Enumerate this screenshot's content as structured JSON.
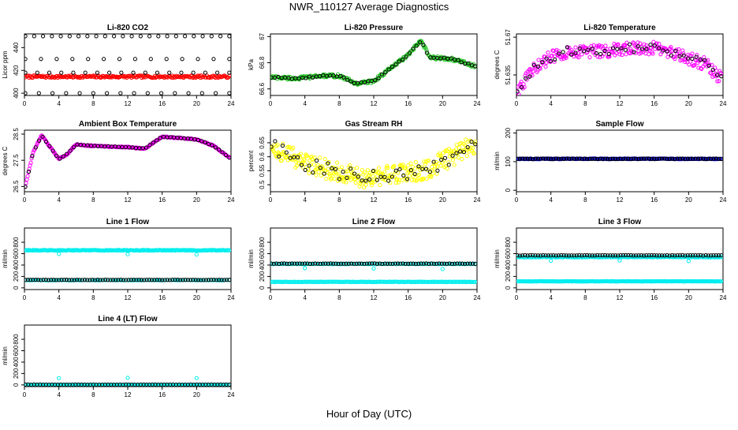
{
  "suptitle": "NWR_110127  Average Diagnostics",
  "common_xlabel": "Hour of Day (UTC)",
  "chart_data": [
    {
      "type": "scatter",
      "title": "Li-820 CO2",
      "ylabel": "Licor ppm",
      "xlim": [
        0,
        24
      ],
      "xticks": [
        0,
        4,
        8,
        12,
        16,
        20,
        24
      ],
      "ylim": [
        398,
        452
      ],
      "yticks": [
        400,
        420,
        440
      ],
      "series": [
        {
          "name": "minute",
          "color": "#ff0000",
          "model": "flat",
          "base": 414.5,
          "amp": 1.0,
          "n": 220
        },
        {
          "name": "top",
          "color": "#000000",
          "model": "flat",
          "base": 450,
          "amp": 0,
          "n": 24
        },
        {
          "name": "upper",
          "color": "#000000",
          "model": "flat",
          "base": 430,
          "amp": 0,
          "n": 14
        },
        {
          "name": "mid",
          "color": "#000000",
          "model": "flat",
          "base": 418,
          "amp": 0,
          "n": 18
        },
        {
          "name": "low",
          "color": "#000000",
          "model": "flat",
          "base": 400,
          "amp": 0,
          "n": 16
        }
      ]
    },
    {
      "type": "scatter",
      "title": "Li-820 Pressure",
      "ylabel": "kPa",
      "xlim": [
        0,
        24
      ],
      "xticks": [
        0,
        4,
        8,
        12,
        16,
        20,
        24
      ],
      "ylim": [
        66.55,
        67.02
      ],
      "yticks": [
        66.6,
        66.8,
        67.0
      ],
      "series": [
        {
          "name": "minute",
          "color": "#22c222",
          "model": "curve",
          "curve": [
            [
              0,
              66.69
            ],
            [
              3,
              66.68
            ],
            [
              6,
              66.7
            ],
            [
              8,
              66.7
            ],
            [
              10,
              66.64
            ],
            [
              12,
              66.66
            ],
            [
              14,
              66.76
            ],
            [
              16,
              66.86
            ],
            [
              17.5,
              66.97
            ],
            [
              18.5,
              66.84
            ],
            [
              21,
              66.83
            ],
            [
              22.5,
              66.8
            ],
            [
              24,
              66.77
            ]
          ],
          "amp": 0.012,
          "n": 240
        },
        {
          "name": "hourly",
          "color": "#000000",
          "model": "curve",
          "curve": [
            [
              0,
              66.69
            ],
            [
              3,
              66.68
            ],
            [
              6,
              66.7
            ],
            [
              8,
              66.7
            ],
            [
              10,
              66.64
            ],
            [
              12,
              66.66
            ],
            [
              14,
              66.76
            ],
            [
              16,
              66.86
            ],
            [
              17.5,
              66.97
            ],
            [
              18.5,
              66.84
            ],
            [
              21,
              66.83
            ],
            [
              22.5,
              66.8
            ],
            [
              24,
              66.77
            ]
          ],
          "amp": 0.006,
          "n": 60
        }
      ]
    },
    {
      "type": "scatter",
      "title": "Li-820 Temperature",
      "ylabel": "degrees C",
      "xlim": [
        0,
        24
      ],
      "xticks": [
        0,
        4,
        8,
        12,
        16,
        20,
        24
      ],
      "ylim": [
        51.616,
        51.673
      ],
      "yticks": [
        51.635,
        51.67
      ],
      "series": [
        {
          "name": "minute",
          "color": "#ff00ff",
          "model": "curve",
          "curve": [
            [
              0,
              51.62
            ],
            [
              2,
              51.64
            ],
            [
              4,
              51.652
            ],
            [
              6,
              51.657
            ],
            [
              10,
              51.657
            ],
            [
              14,
              51.66
            ],
            [
              16,
              51.66
            ],
            [
              18,
              51.655
            ],
            [
              20,
              51.65
            ],
            [
              22,
              51.645
            ],
            [
              24,
              51.63
            ]
          ],
          "amp": 0.006,
          "n": 260
        },
        {
          "name": "hourly",
          "color": "#000000",
          "model": "curve",
          "curve": [
            [
              0,
              51.62
            ],
            [
              2,
              51.64
            ],
            [
              4,
              51.652
            ],
            [
              6,
              51.657
            ],
            [
              10,
              51.657
            ],
            [
              14,
              51.66
            ],
            [
              16,
              51.66
            ],
            [
              18,
              51.655
            ],
            [
              20,
              51.65
            ],
            [
              22,
              51.645
            ],
            [
              24,
              51.63
            ]
          ],
          "amp": 0.004,
          "n": 50
        }
      ]
    },
    {
      "type": "scatter",
      "title": "Ambient Box Temperature",
      "ylabel": "degrees C",
      "xlim": [
        0,
        24
      ],
      "xticks": [
        0,
        4,
        8,
        12,
        16,
        20,
        24
      ],
      "ylim": [
        26.3,
        28.65
      ],
      "yticks": [
        26.5,
        27.5,
        28.5
      ],
      "series": [
        {
          "name": "minute",
          "color": "#ff00ff",
          "model": "curve",
          "curve": [
            [
              0,
              26.35
            ],
            [
              1,
              27.8
            ],
            [
              2,
              28.45
            ],
            [
              3,
              28.0
            ],
            [
              4,
              27.55
            ],
            [
              5,
              27.75
            ],
            [
              6,
              28.1
            ],
            [
              8,
              28.05
            ],
            [
              12,
              28.0
            ],
            [
              14,
              27.95
            ],
            [
              16,
              28.4
            ],
            [
              18,
              28.35
            ],
            [
              20,
              28.3
            ],
            [
              22,
              28.05
            ],
            [
              24,
              27.55
            ]
          ],
          "amp": 0.02,
          "n": 260
        },
        {
          "name": "hourly",
          "color": "#000000",
          "model": "curve",
          "curve": [
            [
              0,
              26.35
            ],
            [
              1,
              27.8
            ],
            [
              2,
              28.45
            ],
            [
              3,
              28.0
            ],
            [
              4,
              27.55
            ],
            [
              5,
              27.75
            ],
            [
              6,
              28.1
            ],
            [
              8,
              28.05
            ],
            [
              12,
              28.0
            ],
            [
              14,
              27.95
            ],
            [
              16,
              28.4
            ],
            [
              18,
              28.35
            ],
            [
              20,
              28.3
            ],
            [
              22,
              28.05
            ],
            [
              24,
              27.55
            ]
          ],
          "amp": 0.01,
          "n": 60
        }
      ]
    },
    {
      "type": "scatter",
      "title": "Gas Stream RH",
      "ylabel": "percent",
      "xlim": [
        0,
        24
      ],
      "xticks": [
        0,
        4,
        8,
        12,
        16,
        20,
        24
      ],
      "ylim": [
        0.475,
        0.695
      ],
      "yticks": [
        0.5,
        0.55,
        0.6,
        0.65
      ],
      "series": [
        {
          "name": "minute",
          "color": "#ffff00",
          "model": "curve",
          "curve": [
            [
              0,
              0.64
            ],
            [
              4,
              0.575
            ],
            [
              8,
              0.545
            ],
            [
              11,
              0.52
            ],
            [
              14,
              0.54
            ],
            [
              18,
              0.55
            ],
            [
              21,
              0.6
            ],
            [
              24,
              0.65
            ]
          ],
          "amp": 0.035,
          "n": 320
        },
        {
          "name": "hourly",
          "color": "#000000",
          "model": "curve",
          "curve": [
            [
              0,
              0.64
            ],
            [
              4,
              0.575
            ],
            [
              8,
              0.545
            ],
            [
              11,
              0.52
            ],
            [
              14,
              0.54
            ],
            [
              18,
              0.55
            ],
            [
              21,
              0.6
            ],
            [
              24,
              0.65
            ]
          ],
          "amp": 0.025,
          "n": 55
        }
      ]
    },
    {
      "type": "scatter",
      "title": "Sample Flow",
      "ylabel": "ml/min",
      "xlim": [
        0,
        24
      ],
      "xticks": [
        0,
        4,
        8,
        12,
        16,
        20,
        24
      ],
      "ylim": [
        -5,
        210
      ],
      "yticks": [
        0,
        100,
        200
      ],
      "series": [
        {
          "name": "minute",
          "color": "#0000cc",
          "model": "flat",
          "base": 110,
          "amp": 1.2,
          "n": 200
        },
        {
          "name": "hourly",
          "color": "#000000",
          "model": "flat",
          "base": 110,
          "amp": 1.0,
          "n": 80
        }
      ]
    },
    {
      "type": "scatter",
      "title": "Line 1 Flow",
      "ylabel": "ml/min",
      "xlim": [
        0,
        24
      ],
      "xticks": [
        0,
        4,
        8,
        12,
        16,
        20,
        24
      ],
      "ylim": [
        -30,
        1050
      ],
      "yticks": [
        0,
        200,
        400,
        600,
        800
      ],
      "series": [
        {
          "name": "minute",
          "color": "#00eeee",
          "model": "flat",
          "base": 660,
          "amp": 6,
          "n": 220
        },
        {
          "name": "dips",
          "color": "#00eeee",
          "model": "points",
          "points": [
            [
              4,
              595
            ],
            [
              12,
              590
            ],
            [
              20,
              585
            ]
          ]
        },
        {
          "name": "minute-low",
          "color": "#00eeee",
          "model": "flat",
          "base": 135,
          "amp": 3,
          "n": 90
        },
        {
          "name": "hourly",
          "color": "#000000",
          "model": "flat",
          "base": 140,
          "amp": 3,
          "n": 80
        }
      ]
    },
    {
      "type": "scatter",
      "title": "Line 2 Flow",
      "ylabel": "ml/min",
      "xlim": [
        0,
        24
      ],
      "xticks": [
        0,
        4,
        8,
        12,
        16,
        20,
        24
      ],
      "ylim": [
        -30,
        1050
      ],
      "yticks": [
        0,
        200,
        400,
        600,
        800
      ],
      "series": [
        {
          "name": "minute",
          "color": "#00eeee",
          "model": "flat",
          "base": 420,
          "amp": 4,
          "n": 120
        },
        {
          "name": "dips",
          "color": "#00eeee",
          "model": "points",
          "points": [
            [
              4,
              345
            ],
            [
              12,
              340
            ],
            [
              20,
              330
            ]
          ]
        },
        {
          "name": "hourly",
          "color": "#000000",
          "model": "flat",
          "base": 425,
          "amp": 4,
          "n": 80
        },
        {
          "name": "minute-low",
          "color": "#00eeee",
          "model": "flat",
          "base": 105,
          "amp": 3,
          "n": 200
        }
      ]
    },
    {
      "type": "scatter",
      "title": "Line 3 Flow",
      "ylabel": "ml/min",
      "xlim": [
        0,
        24
      ],
      "xticks": [
        0,
        4,
        8,
        12,
        16,
        20,
        24
      ],
      "ylim": [
        -30,
        1050
      ],
      "yticks": [
        0,
        200,
        400,
        600,
        800
      ],
      "series": [
        {
          "name": "minute",
          "color": "#00eeee",
          "model": "flat",
          "base": 540,
          "amp": 5,
          "n": 180
        },
        {
          "name": "dips",
          "color": "#00eeee",
          "model": "points",
          "points": [
            [
              4,
              475
            ],
            [
              12,
              480
            ],
            [
              20,
              470
            ]
          ]
        },
        {
          "name": "hourly",
          "color": "#000000",
          "model": "flat",
          "base": 570,
          "amp": 4,
          "n": 80
        },
        {
          "name": "minute-low",
          "color": "#00eeee",
          "model": "flat",
          "base": 115,
          "amp": 3,
          "n": 220
        }
      ]
    },
    {
      "type": "scatter",
      "title": "Line 4 (LT) Flow",
      "ylabel": "ml/min",
      "xlim": [
        0,
        24
      ],
      "xticks": [
        0,
        4,
        8,
        12,
        16,
        20,
        24
      ],
      "ylim": [
        -30,
        1050
      ],
      "yticks": [
        0,
        200,
        400,
        600,
        800
      ],
      "series": [
        {
          "name": "minute",
          "color": "#00eeee",
          "model": "flat",
          "base": 2,
          "amp": 2,
          "n": 160
        },
        {
          "name": "spikes",
          "color": "#00eeee",
          "model": "points",
          "points": [
            [
              4,
              120
            ],
            [
              12,
              125
            ],
            [
              20,
              120
            ]
          ]
        },
        {
          "name": "hourly",
          "color": "#000000",
          "model": "flat",
          "base": 5,
          "amp": 2,
          "n": 70
        }
      ]
    }
  ]
}
